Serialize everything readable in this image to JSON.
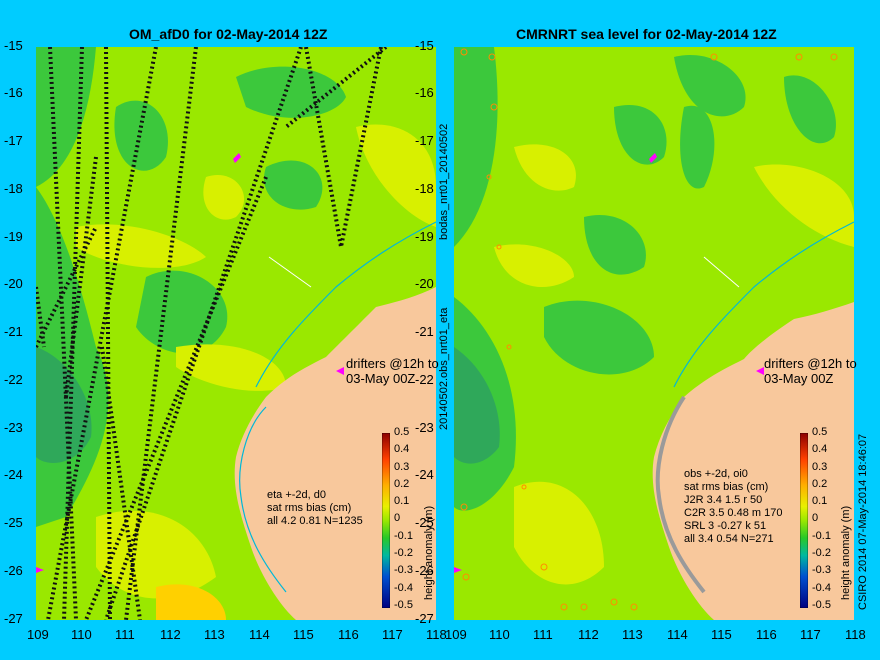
{
  "colors": {
    "background": "#00ccff",
    "land": "#f8c89c",
    "sea_base": "#9ae800",
    "sea_dark": "#3cc83c",
    "sea_light": "#d8f000",
    "coast_line": "#00b8d8",
    "drifter": "#ff00ff"
  },
  "left_panel": {
    "title": "OM_afD0 for 02-May-2014 12Z",
    "y_ticks": [
      "-15",
      "-16",
      "-17",
      "-18",
      "-19",
      "-20",
      "-21",
      "-22",
      "-23",
      "-24",
      "-25",
      "-26",
      "-27"
    ],
    "x_ticks": [
      "109",
      "110",
      "111",
      "112",
      "113",
      "114",
      "115",
      "116",
      "117",
      "118"
    ],
    "drifter_label": [
      "drifters @12h to",
      "03-May 00Z"
    ],
    "stats": [
      "eta +-2d, d0",
      "sat rms bias (cm)",
      "all 4.2 0.81 N=1235"
    ]
  },
  "right_panel": {
    "title": "CMRNRT sea level  for 02-May-2014 12Z",
    "y_ticks": [
      "-15",
      "-16",
      "-17",
      "-18",
      "-19",
      "-20",
      "-21",
      "-22",
      "-23",
      "-24",
      "-25",
      "-26",
      "-27"
    ],
    "x_ticks": [
      "109",
      "110",
      "111",
      "112",
      "113",
      "114",
      "115",
      "116",
      "117",
      "118"
    ],
    "drifter_label": [
      "drifters @12h to",
      "03-May 00Z"
    ],
    "stats": [
      "obs +-2d, oi0",
      "sat rms bias (cm)",
      "J2R   3.4  1.5  r 50",
      "C2R   3.5  0.48  m 170",
      "SRL    3  -0.27  k 51",
      "all   3.4  0.54  N=271"
    ]
  },
  "side_labels": {
    "left": "bodas_nrt01_20140502",
    "left2": "20140502.obs_nrt01_eta",
    "right": "CSIRO 2014   07-May-2014 18:46:07"
  },
  "colorbar": {
    "label": "height anomaly (m)",
    "ticks": [
      "0.5",
      "0.4",
      "0.3",
      "0.2",
      "0.1",
      "0",
      "-0.1",
      "-0.2",
      "-0.3",
      "-0.4",
      "-0.5"
    ]
  }
}
